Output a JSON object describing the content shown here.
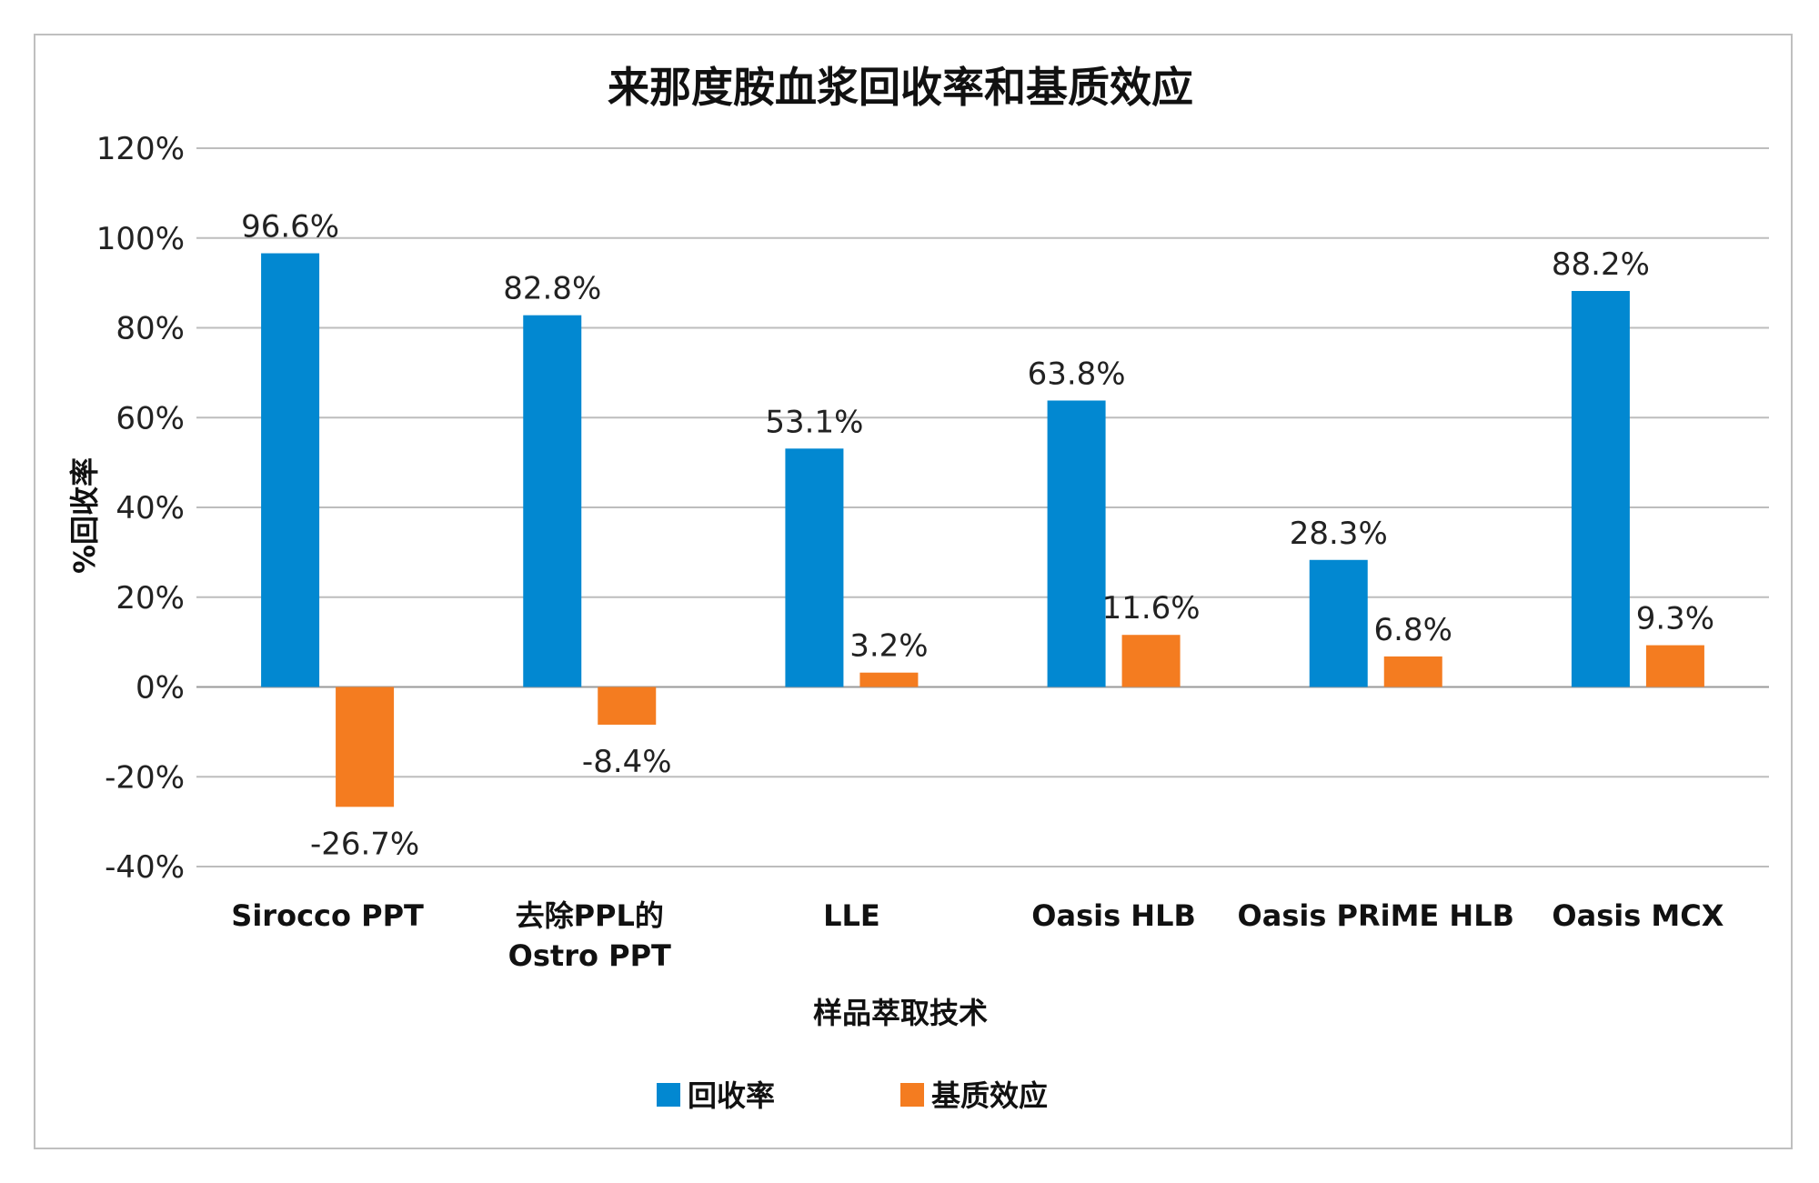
{
  "chart_data": {
    "type": "bar",
    "title": "来那度胺血浆回收率和基质效应",
    "xlabel": "样品萃取技术",
    "ylabel": "%回收率",
    "ylim": [
      -40,
      120
    ],
    "yticks": [
      120,
      100,
      80,
      60,
      40,
      20,
      0,
      -20,
      -40
    ],
    "ytick_labels": [
      "120%",
      "100%",
      "80%",
      "60%",
      "40%",
      "20%",
      "0%",
      "-20%",
      "-40%"
    ],
    "grid": true,
    "legend_position": "bottom",
    "categories": [
      [
        "Sirocco PPT"
      ],
      [
        "去除PPL的",
        "Ostro PPT"
      ],
      [
        "LLE"
      ],
      [
        "Oasis HLB"
      ],
      [
        "Oasis PRiME HLB"
      ],
      [
        "Oasis MCX"
      ]
    ],
    "series": [
      {
        "name": "回收率",
        "color": "#0288d1",
        "values": [
          96.6,
          82.8,
          53.1,
          63.8,
          28.3,
          88.2
        ],
        "labels": [
          "96.6%",
          "82.8%",
          "53.1%",
          "63.8%",
          "28.3%",
          "88.2%"
        ]
      },
      {
        "name": "基质效应",
        "color": "#f47c20",
        "values": [
          -26.7,
          -8.4,
          3.2,
          11.6,
          6.8,
          9.3
        ],
        "labels": [
          "-26.7%",
          "-8.4%",
          "3.2%",
          "11.6%",
          "6.8%",
          "9.3%"
        ]
      }
    ]
  }
}
